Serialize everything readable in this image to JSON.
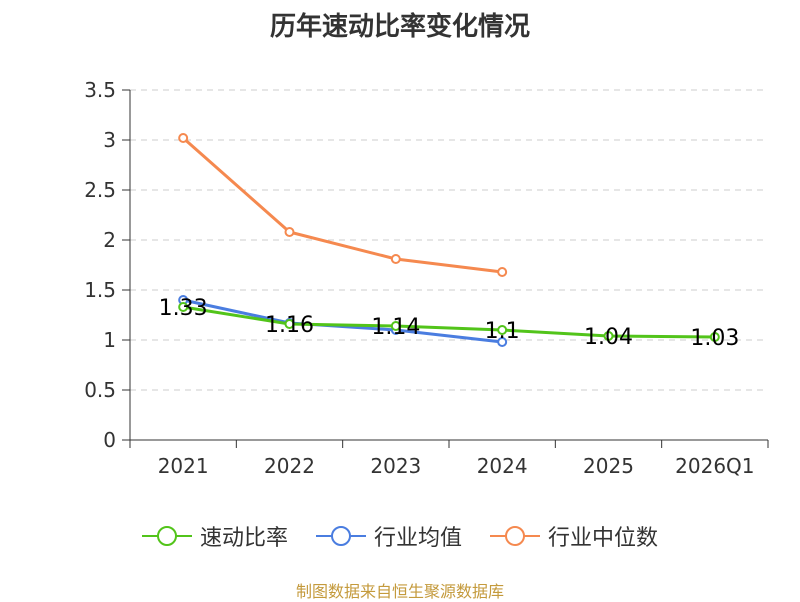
{
  "chart_data": {
    "type": "line",
    "title": "历年速动比率变化情况",
    "categories": [
      "2021",
      "2022",
      "2023",
      "2024",
      "2025",
      "2026Q1"
    ],
    "ylim": [
      0,
      3.5
    ],
    "yticks": [
      0,
      0.5,
      1,
      1.5,
      2,
      2.5,
      3,
      3.5
    ],
    "ytick_labels": [
      "0",
      "0.5",
      "1",
      "1.5",
      "2",
      "2.5",
      "3",
      "3.5"
    ],
    "grid": true,
    "legend_position": "bottom",
    "series": [
      {
        "name": "速动比率",
        "color": "#52c41a",
        "values": [
          1.33,
          1.16,
          1.14,
          1.1,
          1.04,
          1.03
        ],
        "labels": [
          "1.33",
          "1.16",
          "1.14",
          "1.1",
          "1.04",
          "1.03"
        ]
      },
      {
        "name": "行业均值",
        "color": "#4a7de0",
        "values": [
          1.4,
          1.17,
          1.1,
          0.98,
          null,
          null
        ]
      },
      {
        "name": "行业中位数",
        "color": "#f5894f",
        "values": [
          3.02,
          2.08,
          1.81,
          1.68,
          null,
          null
        ]
      }
    ],
    "source": "制图数据来自恒生聚源数据库"
  }
}
